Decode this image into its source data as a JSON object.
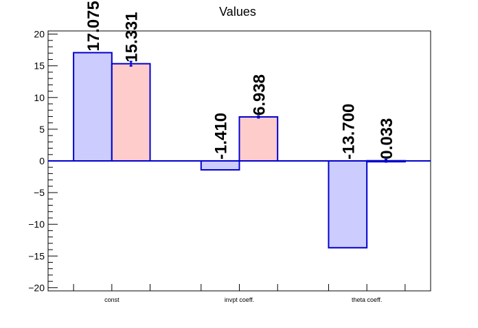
{
  "chart_data": {
    "type": "bar",
    "title": "Values",
    "xlabel": "",
    "ylabel": "",
    "categories": [
      "const",
      "invpt coeff.",
      "theta coeff."
    ],
    "series": [
      {
        "values": [
          17.075,
          -1.41,
          -13.7
        ],
        "labels": [
          "17.075",
          "-1.410",
          "-13.700"
        ],
        "errors": [
          0,
          0,
          0
        ],
        "fill_color": "#ccccff",
        "stroke_color": "#0000cc"
      },
      {
        "values": [
          15.331,
          6.938,
          0.033
        ],
        "labels": [
          "15.331",
          "6.938",
          "0.033"
        ],
        "errors": [
          0.35,
          0.15,
          0.2
        ],
        "fill_color": "#ffcccc",
        "stroke_color": "#0000cc"
      }
    ],
    "ylim": [
      -20.5,
      20.5
    ],
    "yticks": [
      -20,
      -15,
      -10,
      -5,
      0,
      5,
      10,
      15,
      20
    ],
    "ytick_labels": [
      "−20",
      "−15",
      "−10",
      "−5",
      "0",
      "5",
      "10",
      "15",
      "20"
    ],
    "grid": false,
    "legend": "none",
    "zero_line_color": "#0000cc"
  }
}
